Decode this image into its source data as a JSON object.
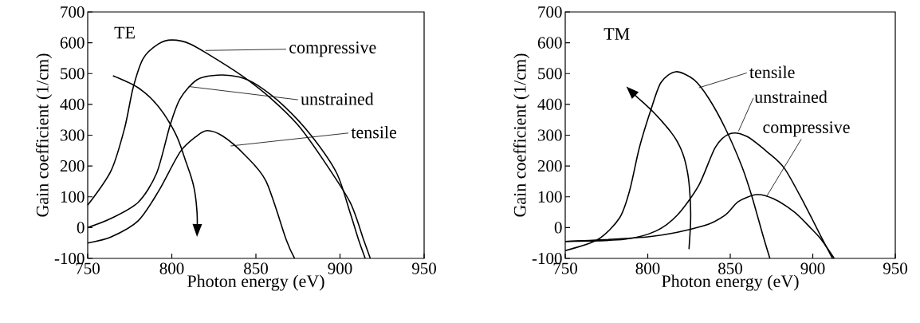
{
  "chart_data": [
    {
      "type": "line",
      "annotations": [
        "TE"
      ],
      "xlabel": "Photon energy (eV)",
      "ylabel": "Gain coefficient (1/cm)",
      "xlim": [
        750,
        950
      ],
      "ylim": [
        -100,
        700
      ],
      "xticks": [
        750,
        800,
        850,
        900,
        950
      ],
      "yticks": [
        -100,
        0,
        100,
        200,
        300,
        400,
        500,
        600,
        700
      ],
      "series": [
        {
          "name": "compressive",
          "color": "#000000",
          "x": [
            750,
            764,
            772,
            777,
            783,
            792,
            800,
            811,
            827,
            843,
            859,
            875,
            890,
            906,
            914,
            918
          ],
          "values": [
            73,
            186,
            324,
            454,
            549,
            596,
            609,
            596,
            545,
            488,
            419,
            333,
            220,
            82,
            -39,
            -100
          ]
        },
        {
          "name": "unstrained",
          "color": "#000000",
          "x": [
            750,
            764,
            780,
            791,
            799,
            805,
            815,
            827,
            840,
            851,
            867,
            883,
            898,
            906,
            911,
            915
          ],
          "values": [
            0,
            30,
            82,
            177,
            333,
            419,
            480,
            495,
            489,
            462,
            393,
            298,
            177,
            48,
            -39,
            -100
          ]
        },
        {
          "name": "tensile",
          "color": "#000000",
          "x": [
            750,
            764,
            780,
            792,
            805,
            815,
            821,
            830,
            843,
            856,
            868,
            873
          ],
          "values": [
            -50,
            -30,
            22,
            117,
            246,
            298,
            315,
            298,
            238,
            151,
            -39,
            -100
          ]
        }
      ]
    },
    {
      "type": "line",
      "annotations": [
        "TM"
      ],
      "xlabel": "Photon energy (eV)",
      "ylabel": "Gain coefficient (1/cm)",
      "xlim": [
        750,
        950
      ],
      "ylim": [
        -100,
        700
      ],
      "xticks": [
        750,
        800,
        850,
        900,
        950
      ],
      "yticks": [
        -100,
        0,
        100,
        200,
        300,
        400,
        500,
        600,
        700
      ],
      "series": [
        {
          "name": "tensile",
          "color": "#000000",
          "x": [
            750,
            770,
            783,
            789,
            795,
            802,
            808,
            817,
            828,
            837,
            847,
            857,
            863,
            870,
            874
          ],
          "values": [
            -75,
            -38,
            32,
            120,
            261,
            384,
            471,
            506,
            480,
            419,
            322,
            199,
            103,
            -29,
            -100
          ]
        },
        {
          "name": "unstrained",
          "color": "#000000",
          "x": [
            750,
            786,
            805,
            818,
            831,
            841,
            850,
            860,
            873,
            883,
            895,
            905,
            912
          ],
          "values": [
            -45,
            -38,
            -11,
            41,
            138,
            261,
            305,
            296,
            243,
            191,
            76,
            -29,
            -100
          ]
        },
        {
          "name": "compressive",
          "color": "#000000",
          "x": [
            750,
            802,
            834,
            847,
            855,
            866,
            876,
            889,
            899,
            905,
            913
          ],
          "values": [
            -45,
            -29,
            6,
            41,
            85,
            107,
            94,
            50,
            -3,
            -38,
            -100
          ]
        }
      ]
    }
  ]
}
